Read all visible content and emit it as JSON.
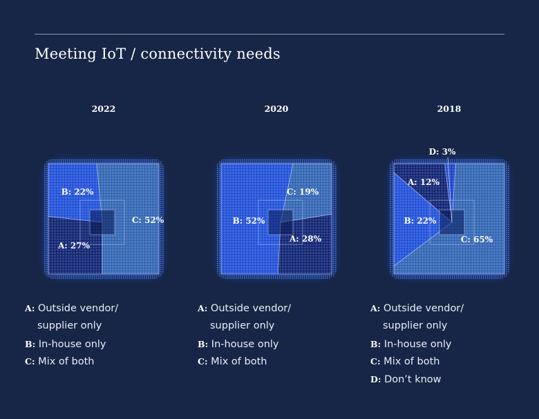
{
  "title": "Meeting IoT / connectivity needs",
  "colors": {
    "background": "#172646",
    "segment_A": "#0c2070",
    "segment_B": "#1d4ed8",
    "segment_C": "#2e63b2",
    "segment_D": "#1640c8"
  },
  "chart_data": [
    {
      "type": "pie",
      "title": "2022",
      "slices": [
        {
          "key": "A",
          "value": 27,
          "label": "A: 27%"
        },
        {
          "key": "B",
          "value": 22,
          "label": "B: 22%"
        },
        {
          "key": "C",
          "value": 52,
          "label": "C: 52%"
        }
      ],
      "legend": [
        {
          "key": "A:",
          "text": "Outside vendor/",
          "cont": "supplier only"
        },
        {
          "key": "B:",
          "text": "In-house only"
        },
        {
          "key": "C:",
          "text": "Mix of both"
        }
      ]
    },
    {
      "type": "pie",
      "title": "2020",
      "slices": [
        {
          "key": "A",
          "value": 28,
          "label": "A: 28%"
        },
        {
          "key": "B",
          "value": 52,
          "label": "B: 52%"
        },
        {
          "key": "C",
          "value": 19,
          "label": "C: 19%"
        }
      ],
      "legend": [
        {
          "key": "A:",
          "text": "Outside vendor/",
          "cont": "supplier only"
        },
        {
          "key": "B:",
          "text": "In-house only"
        },
        {
          "key": "C:",
          "text": "Mix of both"
        }
      ]
    },
    {
      "type": "pie",
      "title": "2018",
      "slices": [
        {
          "key": "A",
          "value": 12,
          "label": "A: 12%"
        },
        {
          "key": "B",
          "value": 22,
          "label": "B: 22%"
        },
        {
          "key": "C",
          "value": 65,
          "label": "C: 65%"
        },
        {
          "key": "D",
          "value": 3,
          "label": "D: 3%"
        }
      ],
      "legend": [
        {
          "key": "A:",
          "text": "Outside vendor/",
          "cont": "supplier only"
        },
        {
          "key": "B:",
          "text": "In-house only"
        },
        {
          "key": "C:",
          "text": "Mix of both"
        },
        {
          "key": "D:",
          "text": "Don’t know"
        }
      ]
    }
  ]
}
